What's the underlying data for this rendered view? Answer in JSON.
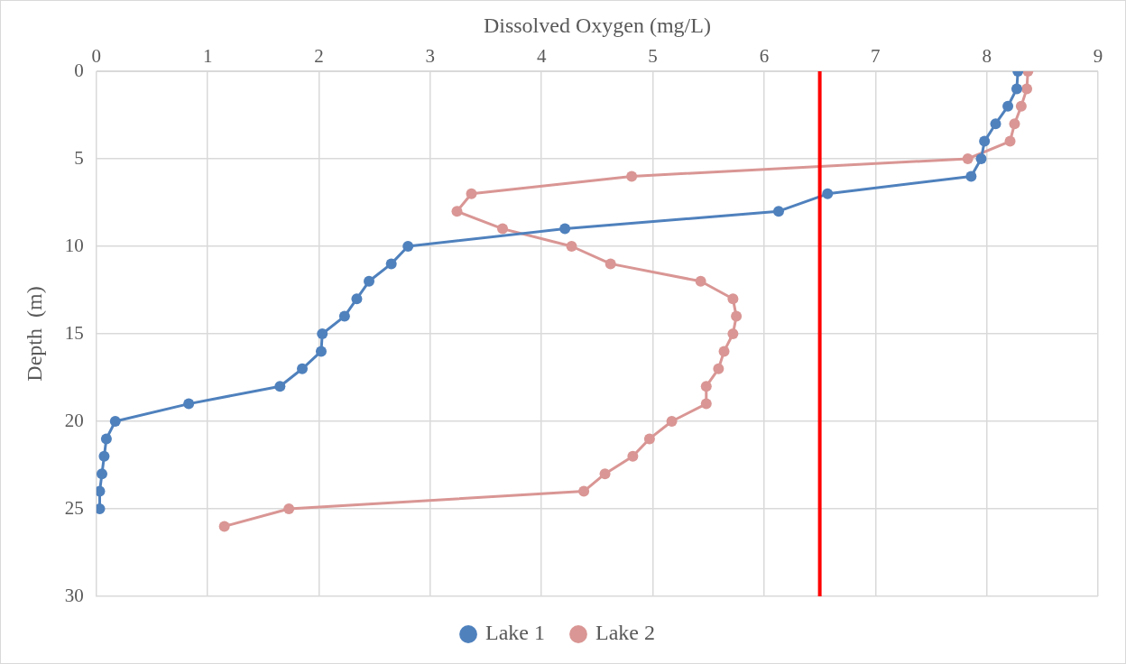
{
  "chart_data": {
    "type": "line",
    "xlabel": "Dissolved Oxygen (mg/L)",
    "ylabel": "Depth  (m)",
    "xlim": [
      0,
      9
    ],
    "xticks": [
      0,
      1,
      2,
      3,
      4,
      5,
      6,
      7,
      8,
      9
    ],
    "ylim": [
      30,
      0
    ],
    "yticks": [
      0,
      5,
      10,
      15,
      20,
      25,
      30
    ],
    "series": [
      {
        "name": "Lake 1",
        "color": "#4f81bd",
        "x": [
          8.28,
          8.27,
          8.19,
          8.08,
          7.98,
          7.95,
          7.86,
          6.57,
          6.13,
          4.21,
          2.8,
          2.65,
          2.45,
          2.34,
          2.23,
          2.03,
          2.02,
          1.85,
          1.65,
          0.83,
          0.17,
          0.09,
          0.07,
          0.05,
          0.03,
          0.03
        ],
        "values": [
          0,
          1,
          2,
          3,
          4,
          5,
          6,
          7,
          8,
          9,
          10,
          11,
          12,
          13,
          14,
          15,
          16,
          17,
          18,
          19,
          20,
          21,
          22,
          23,
          24,
          25
        ]
      },
      {
        "name": "Lake 2",
        "color": "#d99694",
        "x": [
          8.37,
          8.36,
          8.31,
          8.25,
          8.21,
          7.83,
          4.81,
          3.37,
          3.24,
          3.65,
          4.27,
          4.62,
          5.43,
          5.72,
          5.75,
          5.72,
          5.64,
          5.59,
          5.48,
          5.48,
          5.17,
          4.97,
          4.82,
          4.57,
          4.38,
          1.73,
          1.15
        ],
        "values": [
          0,
          1,
          2,
          3,
          4,
          5,
          6,
          7,
          8,
          9,
          10,
          11,
          12,
          13,
          14,
          15,
          16,
          17,
          18,
          19,
          20,
          21,
          22,
          23,
          24,
          25,
          26
        ]
      }
    ],
    "ref_lines": [
      {
        "axis": "x",
        "value": 6.5,
        "color": "#ff0000",
        "line_style": "solid"
      }
    ],
    "grid": true,
    "legend": "bottom",
    "marker": "circle",
    "line_style": "solid"
  }
}
